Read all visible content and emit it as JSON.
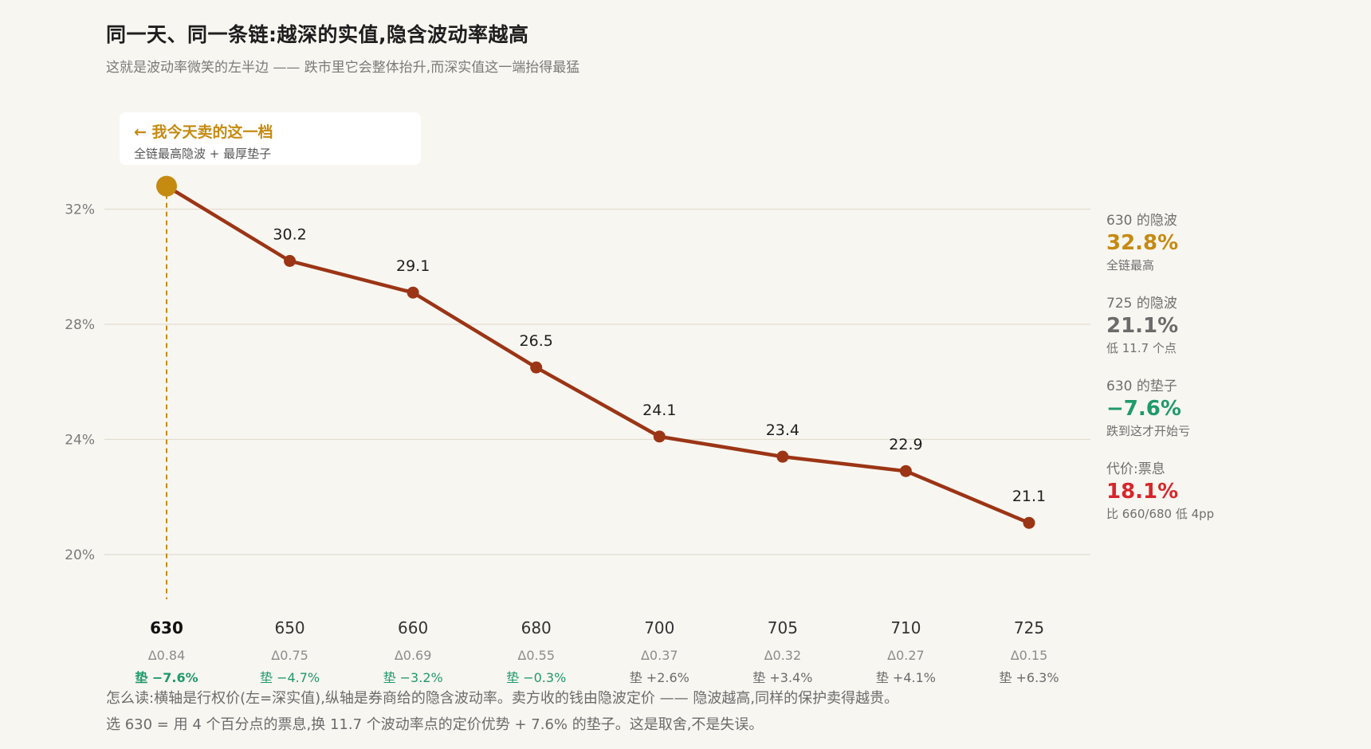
{
  "header": {
    "title": "同一天、同一条链:越深的实值,隐含波动率越高",
    "subtitle": "这就是波动率微笑的左半边 —— 跌市里它会整体抬升,而深实值这一端抬得最猛"
  },
  "callout": {
    "head": "← 我今天卖的这一档",
    "sub": "全链最高隐波 + 最厚垫子"
  },
  "stats": [
    {
      "label": "630 的隐波",
      "value": "32.8%",
      "note": "全链最高",
      "color": "#c58a10"
    },
    {
      "label": "725 的隐波",
      "value": "21.1%",
      "note": "低 11.7 个点",
      "color": "#6b6b6b"
    },
    {
      "label": "630 的垫子",
      "value": "−7.6%",
      "note": "跌到这才开始亏",
      "color": "#1f9a6a"
    },
    {
      "label": "代价:票息",
      "value": "18.1%",
      "note": "比 660/680 低 4pp",
      "color": "#d8262c"
    }
  ],
  "footer": {
    "line1": "怎么读:横轴是行权价(左=深实值),纵轴是券商给的隐含波动率。卖方收的钱由隐波定价 —— 隐波越高,同样的保护卖得越贵。",
    "line2": "选 630 = 用 4 个百分点的票息,换 11.7 个波动率点的定价优势 + 7.6% 的垫子。这是取舍,不是失误。"
  },
  "chart_data": {
    "type": "line",
    "title": "同一天、同一条链:越深的实值,隐含波动率越高",
    "categories": [
      "630",
      "650",
      "660",
      "680",
      "700",
      "705",
      "710",
      "725"
    ],
    "values": [
      32.8,
      30.2,
      29.1,
      26.5,
      24.1,
      23.4,
      22.9,
      21.1
    ],
    "data_labels": [
      "",
      "30.2",
      "29.1",
      "26.5",
      "24.1",
      "23.4",
      "22.9",
      "21.1"
    ],
    "deltas": [
      "Δ0.84",
      "Δ0.75",
      "Δ0.69",
      "Δ0.55",
      "Δ0.37",
      "Δ0.32",
      "Δ0.27",
      "Δ0.15"
    ],
    "cushions": [
      "垫 −7.6%",
      "垫 −4.7%",
      "垫 −3.2%",
      "垫 −0.3%",
      "垫 +2.6%",
      "垫 +3.4%",
      "垫 +4.1%",
      "垫 +6.3%"
    ],
    "cushion_colors": [
      "#1f9a6a",
      "#1f9a6a",
      "#1f9a6a",
      "#1f9a6a",
      "#6b6b6b",
      "#6b6b6b",
      "#6b6b6b",
      "#6b6b6b"
    ],
    "highlight_index": 0,
    "ylim": [
      18.2,
      34.2
    ],
    "yticks": [
      20,
      24,
      28,
      32
    ],
    "ytick_labels": [
      "20%",
      "24%",
      "28%",
      "32%"
    ],
    "grid": true,
    "line_color": "#9b3515",
    "highlight_color": "#c58a10"
  }
}
